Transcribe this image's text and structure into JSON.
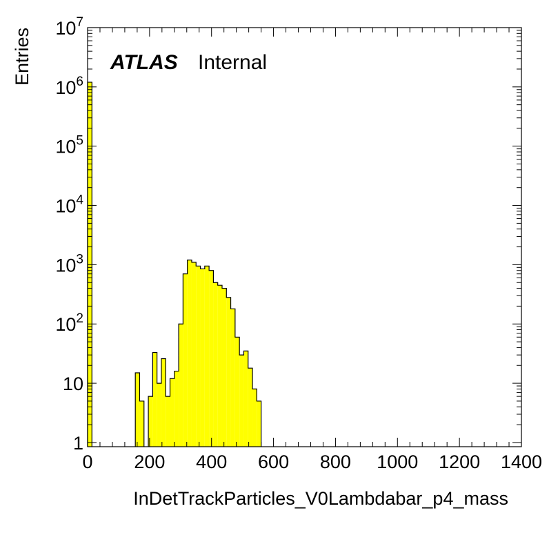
{
  "chart_data": {
    "type": "bar",
    "style": "filled-histogram",
    "fill_color": "#ffff00",
    "line_color": "#000000",
    "xlabel": "InDetTrackParticles_V0Lambdabar_p4_mass",
    "ylabel": "Entries",
    "xlim": [
      0,
      1400
    ],
    "ylim": [
      0.85,
      10000000
    ],
    "yscale": "log",
    "grid": false,
    "x_ticks": [
      0,
      200,
      400,
      600,
      800,
      1000,
      1200,
      1400
    ],
    "y_ticks": [
      {
        "value": 1,
        "base": "1",
        "exp": ""
      },
      {
        "value": 10,
        "base": "10",
        "exp": ""
      },
      {
        "value": 100,
        "base": "10",
        "exp": "2"
      },
      {
        "value": 1000,
        "base": "10",
        "exp": "3"
      },
      {
        "value": 10000,
        "base": "10",
        "exp": "4"
      },
      {
        "value": 100000,
        "base": "10",
        "exp": "5"
      },
      {
        "value": 1000000,
        "base": "10",
        "exp": "6"
      },
      {
        "value": 10000000,
        "base": "10",
        "exp": "7"
      }
    ],
    "bin_width": 14,
    "bins": [
      {
        "x": 0,
        "y": 1200000
      },
      {
        "x": 154,
        "y": 15
      },
      {
        "x": 168,
        "y": 5
      },
      {
        "x": 196,
        "y": 6
      },
      {
        "x": 210,
        "y": 33
      },
      {
        "x": 224,
        "y": 10
      },
      {
        "x": 238,
        "y": 26
      },
      {
        "x": 252,
        "y": 6
      },
      {
        "x": 266,
        "y": 12
      },
      {
        "x": 280,
        "y": 16
      },
      {
        "x": 294,
        "y": 100
      },
      {
        "x": 308,
        "y": 700
      },
      {
        "x": 322,
        "y": 1200
      },
      {
        "x": 336,
        "y": 1100
      },
      {
        "x": 350,
        "y": 950
      },
      {
        "x": 364,
        "y": 850
      },
      {
        "x": 378,
        "y": 950
      },
      {
        "x": 392,
        "y": 800
      },
      {
        "x": 406,
        "y": 500
      },
      {
        "x": 420,
        "y": 450
      },
      {
        "x": 434,
        "y": 400
      },
      {
        "x": 448,
        "y": 280
      },
      {
        "x": 462,
        "y": 180
      },
      {
        "x": 476,
        "y": 60
      },
      {
        "x": 490,
        "y": 30
      },
      {
        "x": 504,
        "y": 35
      },
      {
        "x": 518,
        "y": 18
      },
      {
        "x": 532,
        "y": 8
      },
      {
        "x": 546,
        "y": 5
      }
    ]
  },
  "watermark": {
    "brand": "ATLAS",
    "label": "Internal"
  }
}
